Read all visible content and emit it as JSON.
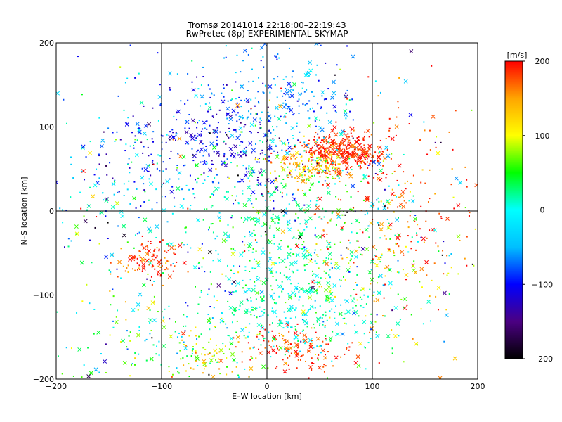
{
  "chart_data": {
    "type": "scatter",
    "title": "Tromsø 20141014 22:18:00–22:19:43",
    "subtitle": "RwPretec (8p) EXPERIMENTAL SKYMAP",
    "xlabel": "E–W location [km]",
    "ylabel": "N–S location [km]",
    "xlim": [
      -200,
      200
    ],
    "ylim": [
      -200,
      200
    ],
    "x_ticks": [
      -200,
      -100,
      0,
      100,
      200
    ],
    "y_ticks": [
      -200,
      -100,
      0,
      100,
      200
    ],
    "grid": true,
    "colorbar": {
      "label": "[m/s]",
      "range": [
        -200,
        200
      ],
      "ticks": [
        -200,
        -100,
        0,
        100,
        200
      ],
      "colormap": [
        "#000000",
        "#4b0082",
        "#0000ff",
        "#00bfff",
        "#00ffff",
        "#00ff00",
        "#ffff00",
        "#ffa500",
        "#ff0000"
      ]
    },
    "clusters": [
      {
        "x": 70,
        "y": 70,
        "sx": 18,
        "sy": 12,
        "n": 320,
        "v": 190,
        "vs": 15
      },
      {
        "x": 40,
        "y": 55,
        "sx": 20,
        "sy": 10,
        "n": 140,
        "v": 130,
        "vs": 30
      },
      {
        "x": -110,
        "y": -60,
        "sx": 18,
        "sy": 12,
        "n": 110,
        "v": 180,
        "vs": 25
      },
      {
        "x": -50,
        "y": 80,
        "sx": 45,
        "sy": 35,
        "n": 280,
        "v": -110,
        "vs": 25
      },
      {
        "x": 10,
        "y": 130,
        "sx": 40,
        "sy": 35,
        "n": 200,
        "v": -60,
        "vs": 25
      },
      {
        "x": 20,
        "y": -20,
        "sx": 55,
        "sy": 55,
        "n": 420,
        "v": 20,
        "vs": 30
      },
      {
        "x": 30,
        "y": -120,
        "sx": 45,
        "sy": 30,
        "n": 320,
        "v": 10,
        "vs": 30
      },
      {
        "x": 30,
        "y": -165,
        "sx": 30,
        "sy": 15,
        "n": 140,
        "v": 180,
        "vs": 25
      },
      {
        "x": -60,
        "y": -170,
        "sx": 20,
        "sy": 15,
        "n": 80,
        "v": 100,
        "vs": 40
      },
      {
        "x": -140,
        "y": 40,
        "sx": 40,
        "sy": 60,
        "n": 130,
        "v": -40,
        "vs": 50
      },
      {
        "x": 120,
        "y": 30,
        "sx": 40,
        "sy": 60,
        "n": 150,
        "v": 190,
        "vs": 20
      },
      {
        "x": 110,
        "y": -60,
        "sx": 45,
        "sy": 50,
        "n": 140,
        "v": 120,
        "vs": 40
      },
      {
        "x": -120,
        "y": -150,
        "sx": 40,
        "sy": 30,
        "n": 100,
        "v": 30,
        "vs": 50
      },
      {
        "x": 0,
        "y": 0,
        "sx": 110,
        "sy": 110,
        "n": 500,
        "v": 0,
        "vs": 110
      }
    ],
    "markers": [
      "dot",
      "cross"
    ]
  }
}
